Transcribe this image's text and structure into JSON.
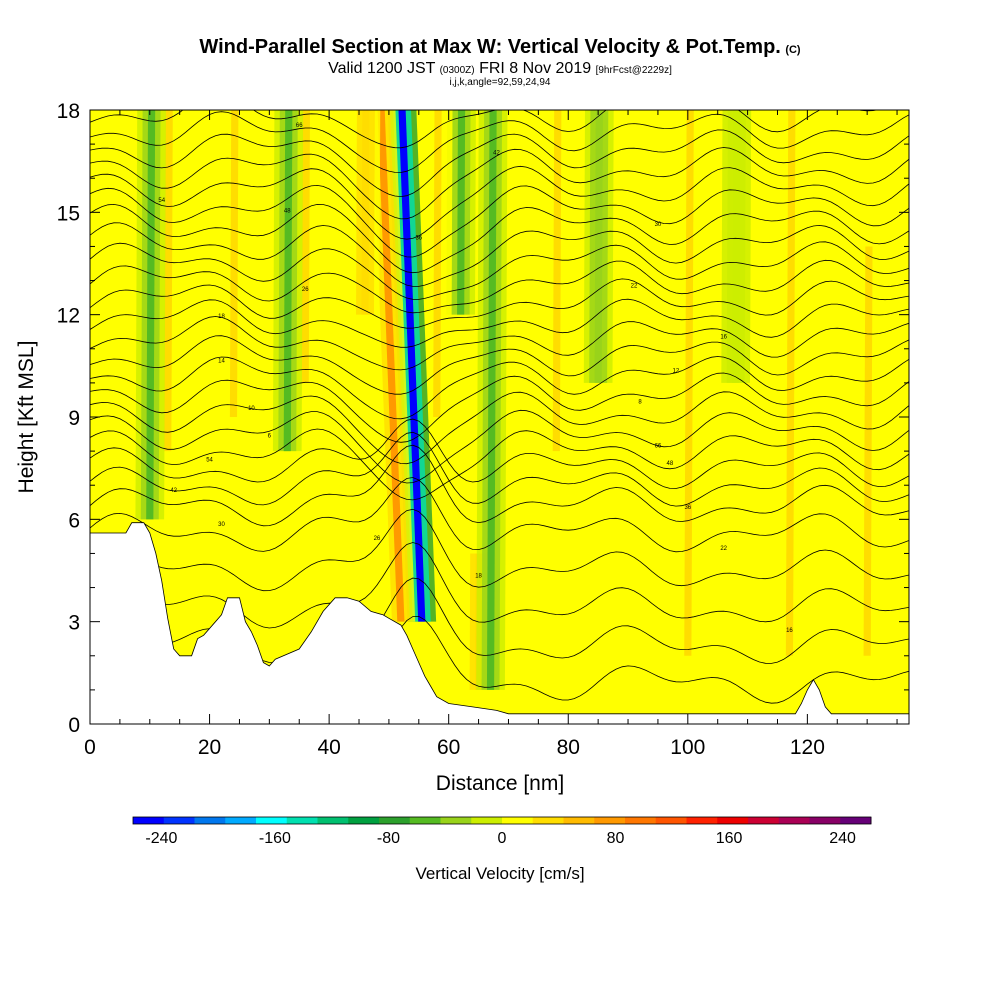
{
  "title": {
    "main": "Wind-Parallel Section at Max W: Vertical Velocity & Pot.Temp.",
    "tag": "(C)",
    "valid": "Valid 1200 JST",
    "utc": "(0300Z)",
    "date": "FRI 8 Nov 2019",
    "forecast": "[9hrFcst@2229z]",
    "indices": "i,j,k,angle=92,59,24,94"
  },
  "chart_data": {
    "type": "heatmap",
    "xlabel": "Distance [nm]",
    "ylabel": "Height [Kft MSL]",
    "xlim": [
      0,
      137
    ],
    "ylim": [
      0,
      18
    ],
    "x_ticks": [
      "0",
      "20",
      "40",
      "60",
      "80",
      "100",
      "120"
    ],
    "y_ticks": [
      "0",
      "3",
      "6",
      "9",
      "12",
      "15",
      "18"
    ],
    "colorbar": {
      "label": "Vertical Velocity [cm/s]",
      "range": [
        -260,
        260
      ],
      "tick_labels": [
        "-240",
        "-160",
        "-80",
        "0",
        "80",
        "160",
        "240"
      ],
      "colors": [
        "#0000ff",
        "#0033ff",
        "#0077ee",
        "#00aaff",
        "#00ffff",
        "#00e0b0",
        "#00c070",
        "#00a040",
        "#2ca02c",
        "#55bb22",
        "#99d31a",
        "#ccee00",
        "#ffff00",
        "#ffdd00",
        "#ffbb00",
        "#ff9900",
        "#ff7700",
        "#ff5500",
        "#ff2200",
        "#ee0000",
        "#cc0033",
        "#aa0055",
        "#880066",
        "#660077"
      ]
    },
    "background_velocity_cm_s": 10,
    "vertical_velocity_features": [
      {
        "x": 10,
        "y_from": 6,
        "y_to": 18,
        "w_cm_s": -50
      },
      {
        "x": 13,
        "y_from": 8,
        "y_to": 18,
        "w_cm_s": 35
      },
      {
        "x": 24,
        "y_from": 9,
        "y_to": 18,
        "w_cm_s": 30
      },
      {
        "x": 33,
        "y_from": 8,
        "y_to": 18,
        "w_cm_s": -55
      },
      {
        "x": 36,
        "y_from": 10,
        "y_to": 18,
        "w_cm_s": 30
      },
      {
        "x": 46,
        "y_from": 12,
        "y_to": 18,
        "w_cm_s": 40
      },
      {
        "x": 52,
        "y_from": 3,
        "y_to": 18,
        "w_cm_s": 70
      },
      {
        "x": 55.5,
        "y_from": 3,
        "y_to": 18,
        "w_cm_s": -240
      },
      {
        "x": 58,
        "y_from": 9,
        "y_to": 18,
        "w_cm_s": 30
      },
      {
        "x": 62,
        "y_from": 12,
        "y_to": 18,
        "w_cm_s": -45
      },
      {
        "x": 67,
        "y_from": 1,
        "y_to": 18,
        "w_cm_s": -50
      },
      {
        "x": 65,
        "y_from": 1,
        "y_to": 5,
        "w_cm_s": 40
      },
      {
        "x": 78,
        "y_from": 8,
        "y_to": 18,
        "w_cm_s": 30
      },
      {
        "x": 85,
        "y_from": 10,
        "y_to": 18,
        "w_cm_s": -40
      },
      {
        "x": 100,
        "y_from": 2,
        "y_to": 18,
        "w_cm_s": 25
      },
      {
        "x": 108,
        "y_from": 10,
        "y_to": 18,
        "w_cm_s": -20
      },
      {
        "x": 117,
        "y_from": 2,
        "y_to": 18,
        "w_cm_s": 25
      },
      {
        "x": 130,
        "y_from": 2,
        "y_to": 14,
        "w_cm_s": 25
      }
    ],
    "terrain_kft": [
      [
        0,
        5.6
      ],
      [
        6,
        5.6
      ],
      [
        7,
        5.9
      ],
      [
        9,
        5.9
      ],
      [
        10,
        5.6
      ],
      [
        11,
        5.0
      ],
      [
        12,
        4.2
      ],
      [
        13,
        3.1
      ],
      [
        14,
        2.2
      ],
      [
        15,
        2.0
      ],
      [
        17,
        2.0
      ],
      [
        18,
        2.5
      ],
      [
        19,
        2.6
      ],
      [
        21,
        3.0
      ],
      [
        22,
        3.2
      ],
      [
        23,
        3.7
      ],
      [
        25,
        3.7
      ],
      [
        26,
        3.0
      ],
      [
        27,
        2.7
      ],
      [
        28,
        2.3
      ],
      [
        29,
        1.8
      ],
      [
        30,
        1.7
      ],
      [
        31,
        1.9
      ],
      [
        35,
        2.2
      ],
      [
        37,
        2.7
      ],
      [
        39,
        3.3
      ],
      [
        41,
        3.7
      ],
      [
        43,
        3.7
      ],
      [
        45,
        3.6
      ],
      [
        47,
        3.3
      ],
      [
        49,
        3.2
      ],
      [
        50,
        3.1
      ],
      [
        52,
        2.9
      ],
      [
        53,
        2.6
      ],
      [
        54,
        2.2
      ],
      [
        55,
        1.8
      ],
      [
        56,
        1.4
      ],
      [
        57,
        1.1
      ],
      [
        58,
        0.8
      ],
      [
        60,
        0.6
      ],
      [
        64,
        0.5
      ],
      [
        68,
        0.4
      ],
      [
        70,
        0.3
      ],
      [
        118,
        0.3
      ],
      [
        119,
        0.6
      ],
      [
        120,
        1.0
      ],
      [
        121,
        1.3
      ],
      [
        122,
        1.0
      ],
      [
        123,
        0.5
      ],
      [
        124,
        0.3
      ],
      [
        137,
        0.3
      ]
    ],
    "contour_labels": [
      "66",
      "54",
      "48",
      "42",
      "36",
      "30",
      "26",
      "22",
      "18",
      "16",
      "14",
      "12",
      "10",
      "8",
      "6"
    ]
  }
}
